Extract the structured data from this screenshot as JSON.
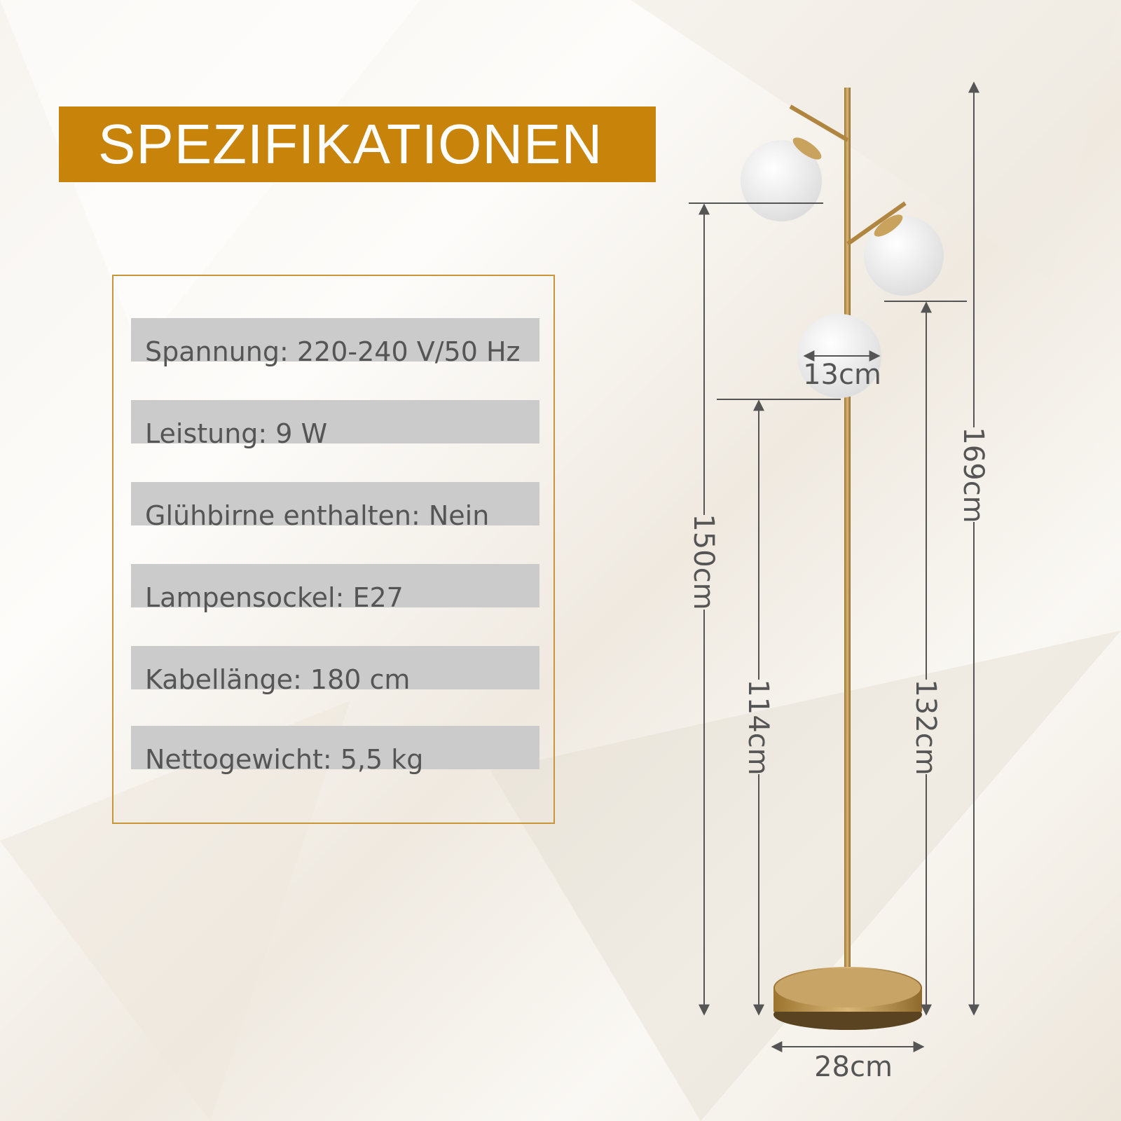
{
  "title": "SPEZIFIKATIONEN",
  "specs": [
    "Spannung: 220-240 V/50 Hz",
    "Leistung: 9 W",
    "Glühbirne enthalten: Nein",
    "Lampensockel: E27",
    "Kabellänge: 180 cm",
    "Nettogewicht: 5,5 kg"
  ],
  "dimensions": {
    "globe": "13cm",
    "base": "28cm",
    "top_globe": "150cm",
    "bottom_globe": "114cm",
    "middle_globe": "132cm",
    "total": "169cm"
  },
  "colors": {
    "accent": "#c7830a",
    "brass": "#b8893a",
    "text": "#555555",
    "row": "#cbcbcb"
  }
}
